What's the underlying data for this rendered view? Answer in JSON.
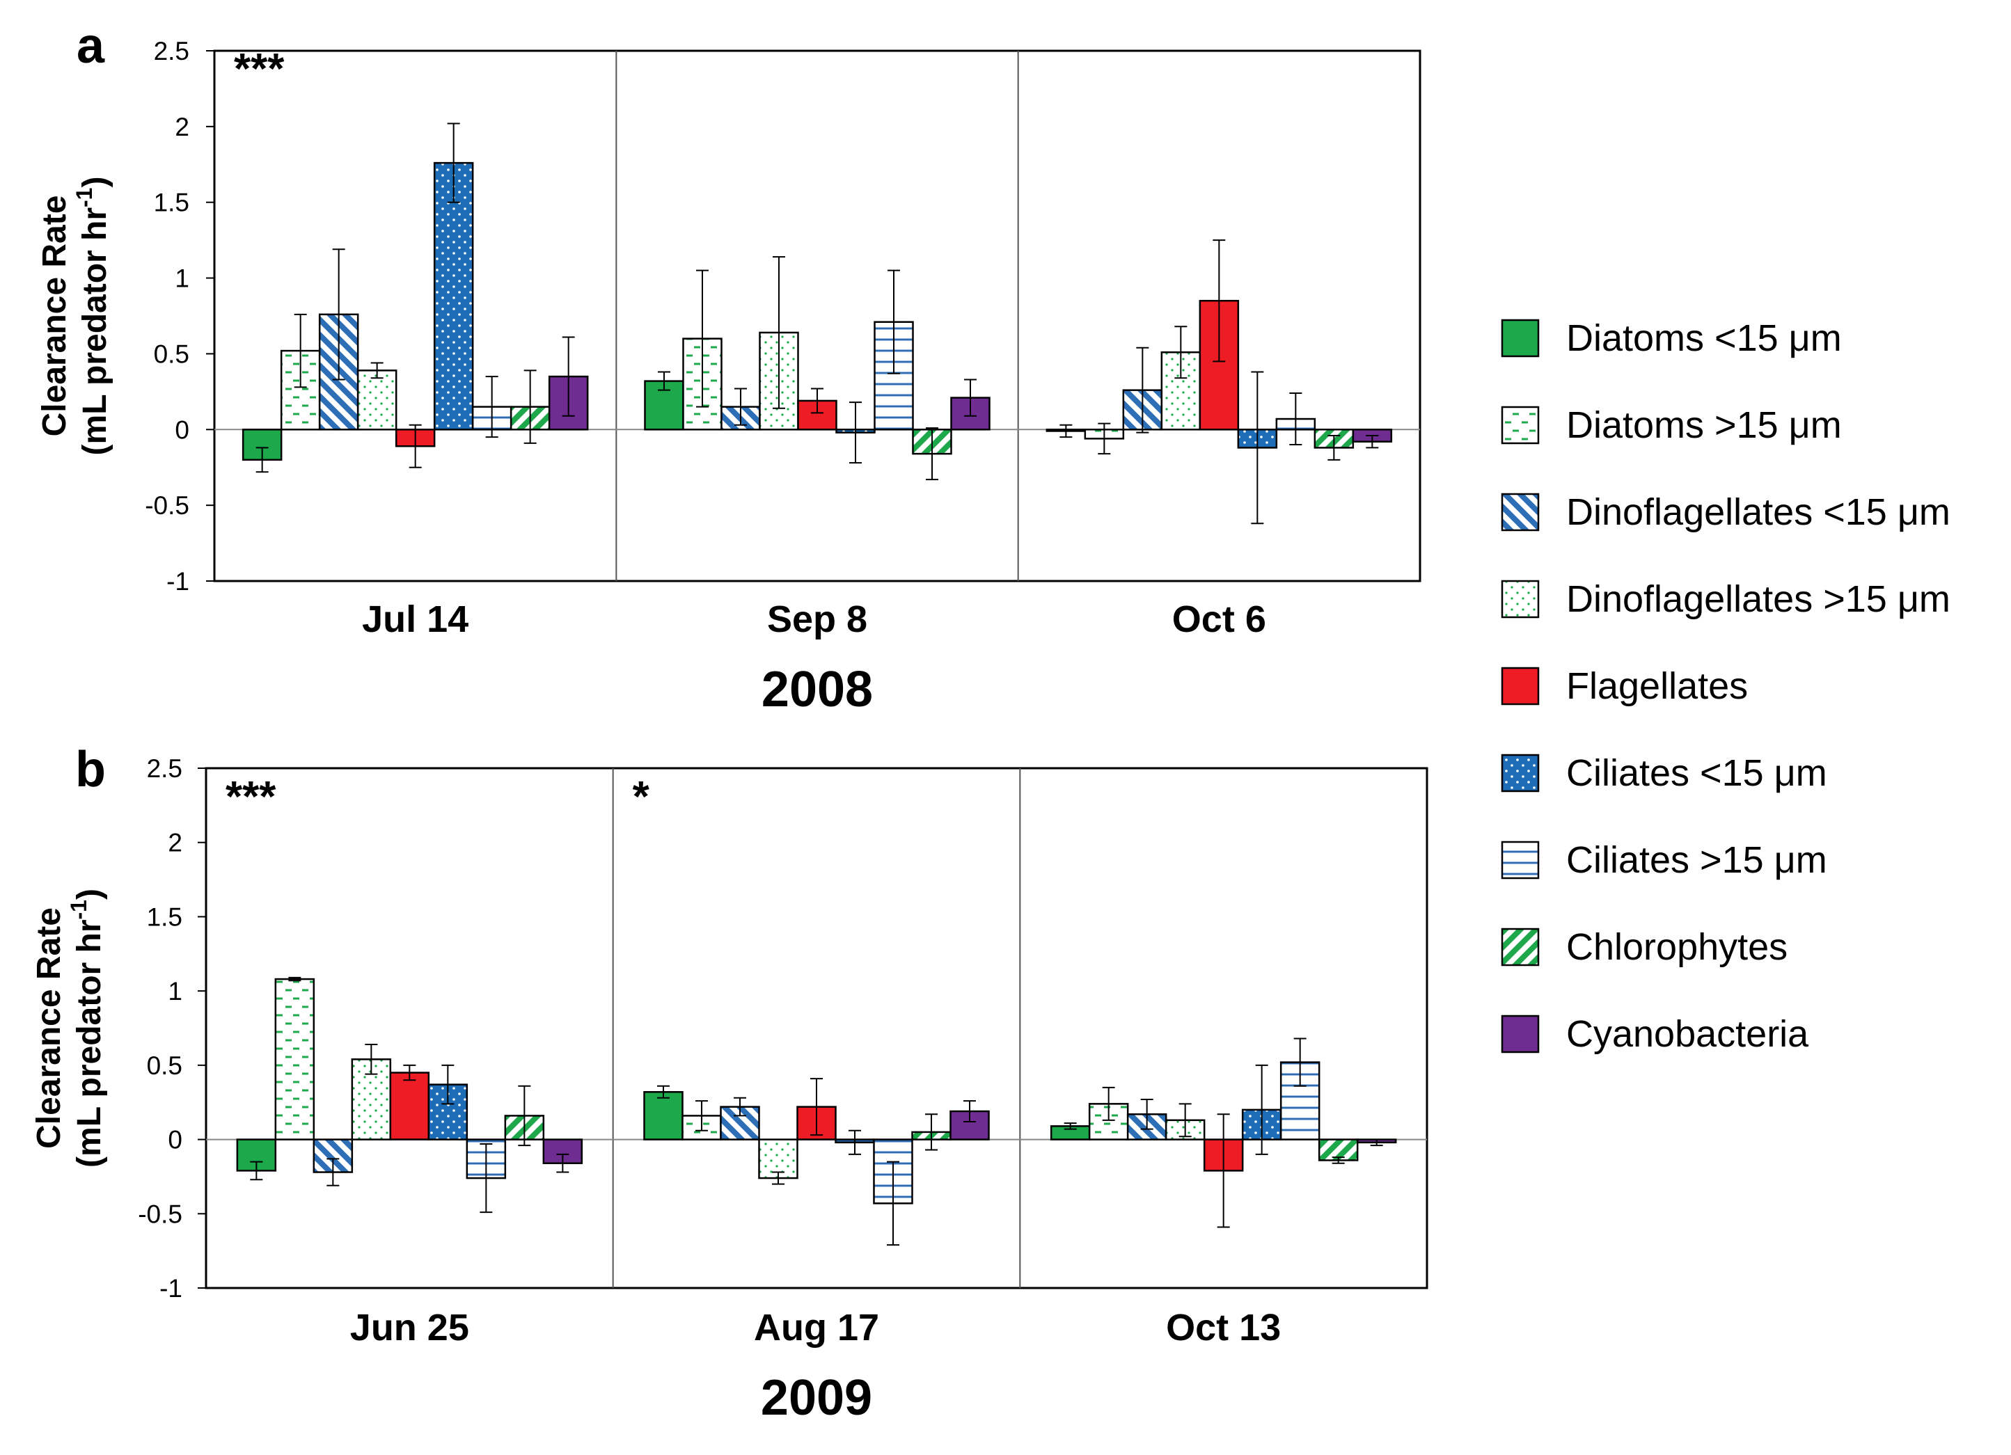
{
  "colors": {
    "diatoms_small": "#1ea84c",
    "diatoms_large": "#1ea84c",
    "dino_small": "#2c6fb6",
    "dino_large": "#1ea84c",
    "flagellates": "#ee1c24",
    "ciliates_small": "#1d6cb6",
    "ciliates_large": "#2c6fb6",
    "chlorophytes": "#1ea84c",
    "cyanobacteria": "#6f2c91"
  },
  "legend": [
    {
      "key": "diatoms_small",
      "label": "Diatoms <15 μm",
      "pattern": "solid"
    },
    {
      "key": "diatoms_large",
      "label": "Diatoms >15 μm",
      "pattern": "dash"
    },
    {
      "key": "dino_small",
      "label": "Dinoflagellates <15 μm",
      "pattern": "diag-back"
    },
    {
      "key": "dino_large",
      "label": "Dinoflagellates >15 μm",
      "pattern": "dots-open"
    },
    {
      "key": "flagellates",
      "label": "Flagellates",
      "pattern": "solid"
    },
    {
      "key": "ciliates_small",
      "label": "Ciliates <15 μm",
      "pattern": "dots-solid"
    },
    {
      "key": "ciliates_large",
      "label": "Ciliates >15 μm",
      "pattern": "hlines"
    },
    {
      "key": "chlorophytes",
      "label": "Chlorophytes",
      "pattern": "diag-fwd"
    },
    {
      "key": "cyanobacteria",
      "label": "Cyanobacteria",
      "pattern": "solid"
    }
  ],
  "chart_data": [
    {
      "type": "bar",
      "panel_label": "a",
      "ylabel_line1": "Clearance Rate",
      "ylabel_line2_pre": "(mL predator hr",
      "ylabel_line2_sup": "-1",
      "ylabel_line2_post": ")",
      "ylim": [
        -1,
        2.5
      ],
      "yticks": [
        "2.5",
        "2",
        "1.5",
        "1",
        "0.5",
        "0",
        "-0.5",
        "-1"
      ],
      "year": "2008",
      "groups": [
        {
          "date": "Jul 14",
          "significance": "***",
          "values": [
            -0.2,
            0.52,
            0.76,
            0.39,
            -0.11,
            1.76,
            0.15,
            0.15,
            0.35
          ],
          "errors": [
            0.08,
            0.24,
            0.43,
            0.05,
            0.14,
            0.26,
            0.2,
            0.24,
            0.26
          ]
        },
        {
          "date": "Sep 8",
          "significance": "",
          "values": [
            0.32,
            0.6,
            0.15,
            0.64,
            0.19,
            -0.02,
            0.71,
            -0.16,
            0.21
          ],
          "errors": [
            0.06,
            0.45,
            0.12,
            0.5,
            0.08,
            0.2,
            0.34,
            0.17,
            0.12
          ]
        },
        {
          "date": "Oct 6",
          "significance": "",
          "values": [
            -0.01,
            -0.06,
            0.26,
            0.51,
            0.85,
            -0.12,
            0.07,
            -0.12,
            -0.08
          ],
          "errors": [
            0.04,
            0.1,
            0.28,
            0.17,
            0.4,
            0.5,
            0.17,
            0.08,
            0.04
          ]
        }
      ]
    },
    {
      "type": "bar",
      "panel_label": "b",
      "ylabel_line1": "Clearance Rate",
      "ylabel_line2_pre": "(mL predator hr",
      "ylabel_line2_sup": "-1",
      "ylabel_line2_post": ")",
      "ylim": [
        -1,
        2.5
      ],
      "yticks": [
        "2.5",
        "2",
        "1.5",
        "1",
        "0.5",
        "0",
        "-0.5",
        "-1"
      ],
      "year": "2009",
      "groups": [
        {
          "date": "Jun 25",
          "significance": "***",
          "values": [
            -0.21,
            1.08,
            -0.22,
            0.54,
            0.45,
            0.37,
            -0.26,
            0.16,
            -0.16
          ],
          "errors": [
            0.06,
            0.01,
            0.09,
            0.1,
            0.05,
            0.13,
            0.23,
            0.2,
            0.06
          ]
        },
        {
          "date": "Aug 17",
          "significance": "*",
          "values": [
            0.32,
            0.16,
            0.22,
            -0.26,
            0.22,
            -0.02,
            -0.43,
            0.05,
            0.19
          ],
          "errors": [
            0.04,
            0.1,
            0.06,
            0.04,
            0.19,
            0.08,
            0.28,
            0.12,
            0.07
          ]
        },
        {
          "date": "Oct 13",
          "significance": "",
          "values": [
            0.09,
            0.24,
            0.17,
            0.13,
            -0.21,
            0.2,
            0.52,
            -0.14,
            -0.02
          ],
          "errors": [
            0.02,
            0.11,
            0.1,
            0.11,
            0.38,
            0.3,
            0.16,
            0.02,
            0.02
          ]
        }
      ]
    }
  ]
}
